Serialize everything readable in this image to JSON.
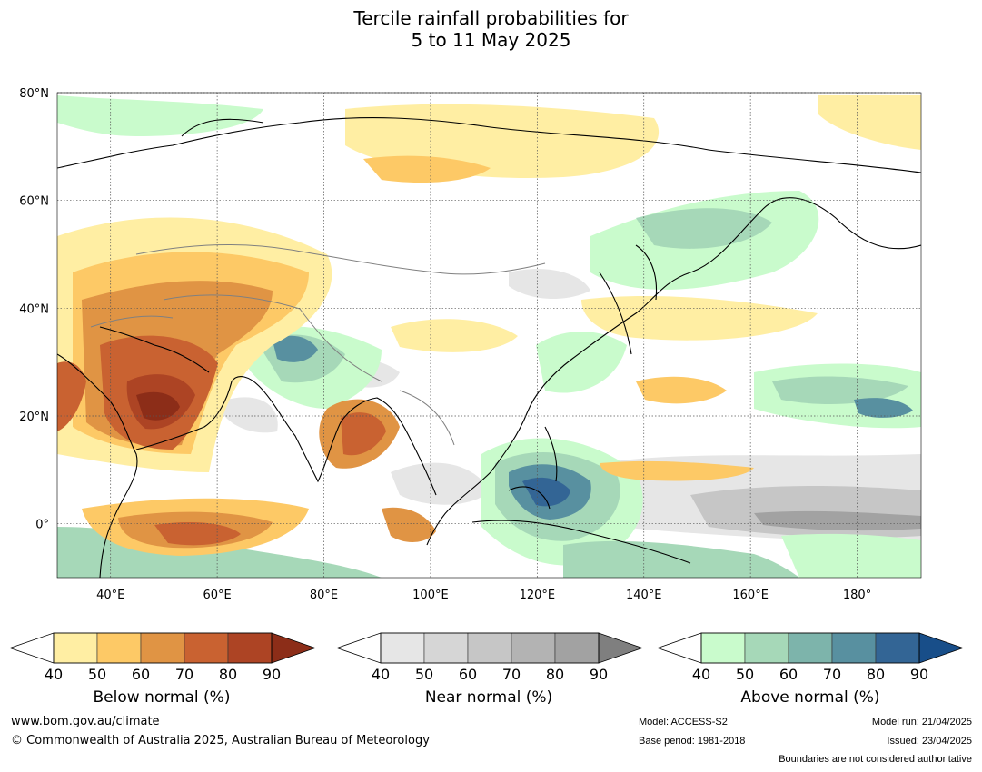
{
  "title_line1": "Tercile rainfall probabilities for",
  "title_line2": "5 to 11 May 2025",
  "map": {
    "lat_ticks": [
      "80°N",
      "60°N",
      "40°N",
      "20°N",
      "0°"
    ],
    "lon_ticks": [
      "40°E",
      "60°E",
      "80°E",
      "100°E",
      "120°E",
      "140°E",
      "160°E",
      "180°"
    ],
    "lat_range": [
      -10,
      80
    ],
    "lon_range": [
      30,
      192
    ]
  },
  "colorbars": [
    {
      "title": "Below normal (%)",
      "ticks": [
        "40",
        "50",
        "60",
        "70",
        "80",
        "90"
      ],
      "colors": [
        "#ffeea3",
        "#fdc966",
        "#e09444",
        "#c96231",
        "#ad4424",
        "#8c2d18"
      ]
    },
    {
      "title": "Near normal (%)",
      "ticks": [
        "40",
        "50",
        "60",
        "70",
        "80",
        "90"
      ],
      "colors": [
        "#e6e6e6",
        "#d6d6d6",
        "#c6c6c6",
        "#b3b3b3",
        "#a2a2a2",
        "#7f7f7f"
      ]
    },
    {
      "title": "Above normal (%)",
      "ticks": [
        "40",
        "50",
        "60",
        "70",
        "80",
        "90"
      ],
      "colors": [
        "#c9fbcc",
        "#a6d8b8",
        "#7db4ab",
        "#5890a0",
        "#336595",
        "#184e89"
      ]
    }
  ],
  "footer": {
    "url": "www.bom.gov.au/climate",
    "copyright": "© Commonwealth of Australia 2025, Australian Bureau of Meteorology",
    "model": "Model: ACCESS-S2",
    "base_period": "Base period: 1981-2018",
    "model_run": "Model run: 21/04/2025",
    "issued": "Issued: 23/04/2025",
    "disclaimer": "Boundaries are not considered authoritative"
  }
}
